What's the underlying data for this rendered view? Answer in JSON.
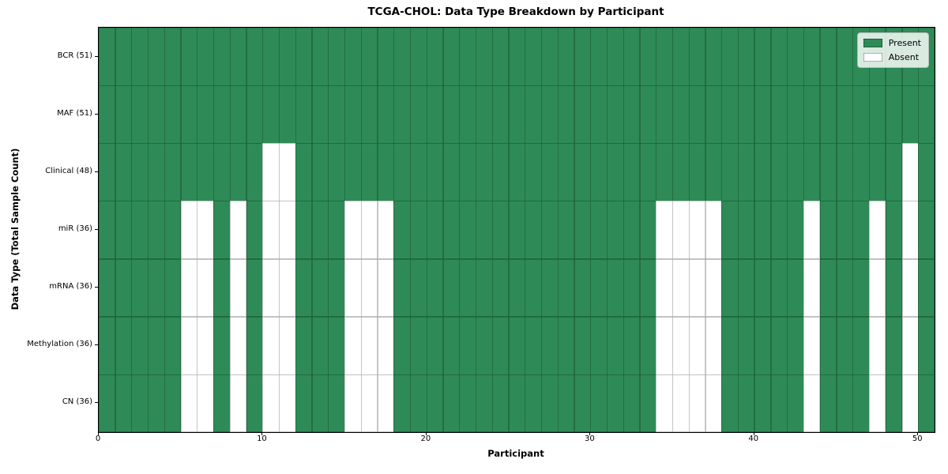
{
  "chart_data": {
    "type": "heatmap",
    "title": "TCGA-CHOL: Data Type Breakdown by Participant",
    "xlabel": "Participant",
    "ylabel": "Data Type (Total Sample Count)",
    "n_participants": 51,
    "x_ticks": [
      0,
      10,
      20,
      30,
      40,
      50
    ],
    "rows": [
      {
        "label": "BCR (51)",
        "count": 51,
        "absent": []
      },
      {
        "label": "MAF (51)",
        "count": 51,
        "absent": []
      },
      {
        "label": "Clinical (48)",
        "count": 48,
        "absent": [
          10,
          11,
          49
        ]
      },
      {
        "label": "miR (36)",
        "count": 36,
        "absent": [
          5,
          6,
          8,
          10,
          11,
          15,
          16,
          17,
          34,
          35,
          36,
          37,
          43,
          47,
          49
        ]
      },
      {
        "label": "mRNA (36)",
        "count": 36,
        "absent": [
          5,
          6,
          8,
          10,
          11,
          15,
          16,
          17,
          34,
          35,
          36,
          37,
          43,
          47,
          49
        ]
      },
      {
        "label": "Methylation (36)",
        "count": 36,
        "absent": [
          5,
          6,
          8,
          10,
          11,
          15,
          16,
          17,
          34,
          35,
          36,
          37,
          43,
          47,
          49
        ]
      },
      {
        "label": "CN (36)",
        "count": 36,
        "absent": [
          5,
          6,
          8,
          10,
          11,
          15,
          16,
          17,
          34,
          35,
          36,
          37,
          43,
          47,
          49
        ]
      }
    ],
    "legend": [
      {
        "label": "Present",
        "color": "#2e8b57"
      },
      {
        "label": "Absent",
        "color": "#ffffff"
      }
    ],
    "colors": {
      "present": "#2e8b57",
      "absent": "#ffffff",
      "grid_on_green": "rgba(0,0,0,0.32)",
      "spine": "#000000"
    },
    "layout": {
      "grid": true,
      "legend_position": "upper right"
    }
  }
}
